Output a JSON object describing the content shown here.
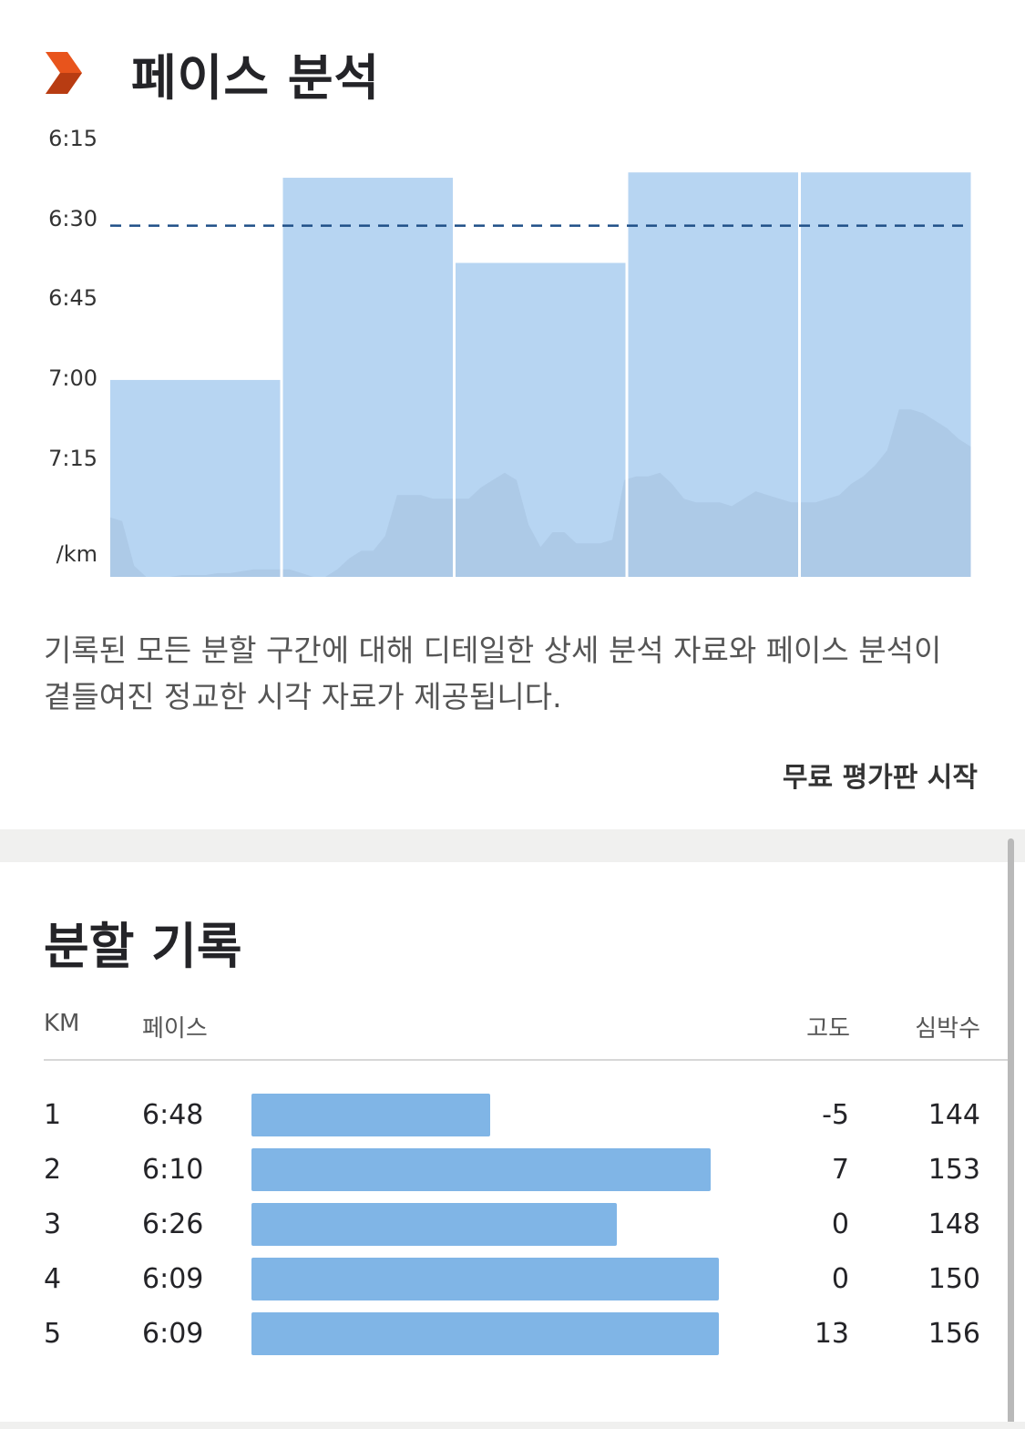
{
  "pace_section": {
    "title": "페이스 분석",
    "y_unit": "/km",
    "description": "기록된 모든 분할 구간에 대해 디테일한 상세 분석 자료와 페이스 분석이 곁들여진 정교한 시각 자료가 제공됩니다.",
    "cta_label": "무료 평가판 시작",
    "colors": {
      "accent": "#e8541c",
      "bar": "#b7d5f2",
      "elevation": "#a9c6e3",
      "avg_line": "#1f4f87"
    }
  },
  "chart_data": {
    "type": "bar",
    "categories": [
      "1",
      "2",
      "3",
      "4",
      "5"
    ],
    "values": [
      "6:48",
      "6:10",
      "6:26",
      "6:09",
      "6:09"
    ],
    "values_seconds": [
      408,
      370,
      386,
      369,
      369
    ],
    "average_pace": "6:19",
    "average_pace_seconds": 379,
    "y_ticks": [
      "6:15",
      "6:30",
      "6:45",
      "7:00",
      "7:15"
    ],
    "ylabel": "/km",
    "ylim": [
      "6:04",
      "7:25"
    ],
    "y_inverted": true,
    "elevation_profile": [
      16,
      15,
      3,
      0,
      0,
      0,
      0.5,
      0.5,
      0.5,
      1,
      1,
      1.5,
      2,
      2,
      2,
      2,
      1,
      0,
      0,
      2,
      5,
      7,
      7,
      11,
      22,
      22,
      22,
      21,
      21,
      21,
      21,
      24,
      26,
      28,
      26,
      14,
      8,
      12,
      12,
      9,
      9,
      9,
      10,
      26,
      27,
      27,
      28,
      25,
      21,
      20,
      20,
      20,
      19,
      21,
      23,
      22,
      21,
      20,
      20,
      20,
      21,
      22,
      25,
      27,
      30,
      34,
      45,
      45,
      44,
      42,
      40,
      37,
      35
    ]
  },
  "splits": {
    "title": "분할 기록",
    "headers": {
      "km": "KM",
      "pace": "페이스",
      "elevation": "고도",
      "heart_rate": "심박수"
    },
    "rows": [
      {
        "km": "1",
        "pace": "6:48",
        "elevation": "-5",
        "heart_rate": "144",
        "bar_fraction": 0.511
      },
      {
        "km": "2",
        "pace": "6:10",
        "elevation": "7",
        "heart_rate": "153",
        "bar_fraction": 0.982
      },
      {
        "km": "3",
        "pace": "6:26",
        "elevation": "0",
        "heart_rate": "148",
        "bar_fraction": 0.782
      },
      {
        "km": "4",
        "pace": "6:09",
        "elevation": "0",
        "heart_rate": "150",
        "bar_fraction": 1.0
      },
      {
        "km": "5",
        "pace": "6:09",
        "elevation": "13",
        "heart_rate": "156",
        "bar_fraction": 1.0
      }
    ]
  }
}
